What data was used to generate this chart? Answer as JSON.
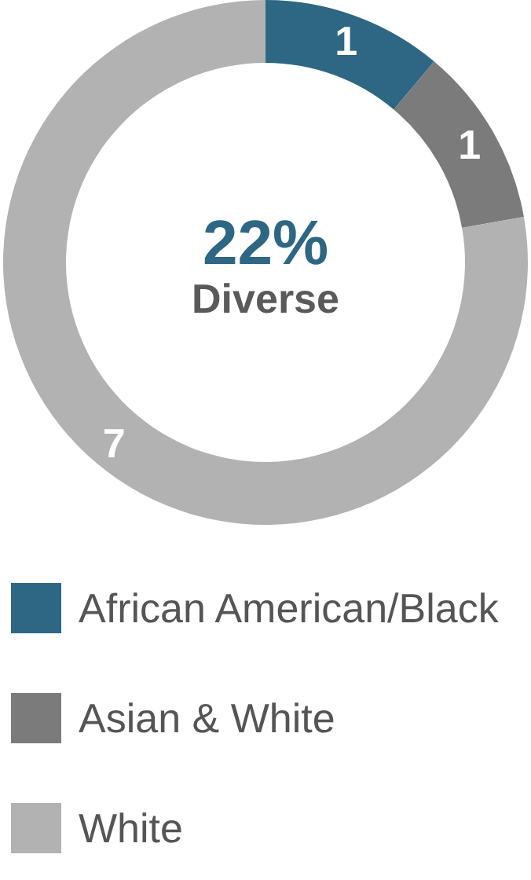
{
  "chart_data": {
    "type": "donut",
    "categories": [
      "African American/Black",
      "Asian & White",
      "White"
    ],
    "values": [
      1,
      1,
      7
    ],
    "colors": [
      "#2e6783",
      "#7b7b7b",
      "#b2b2b2"
    ],
    "data_labels": true,
    "legend": "bottom",
    "annotations": [
      "22%",
      "Diverse"
    ]
  }
}
